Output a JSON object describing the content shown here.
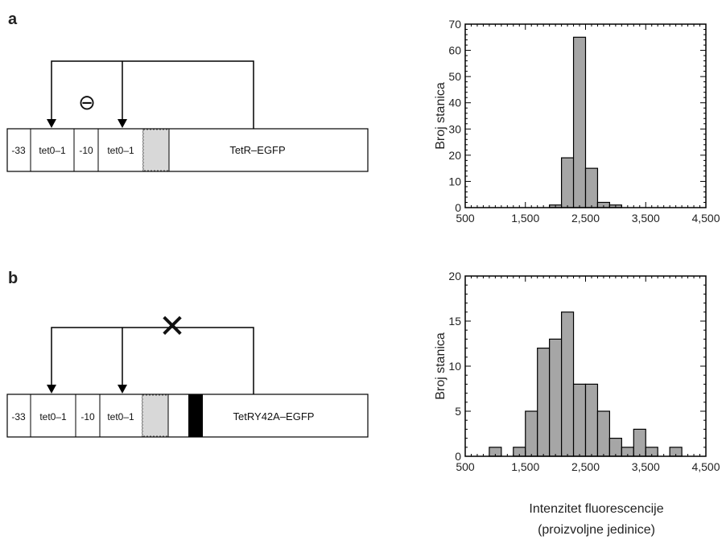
{
  "panels": [
    {
      "letter": "a",
      "segments": [
        "-33",
        "tet0–1",
        "-10",
        "tet0–1",
        "TetR–EGFP"
      ],
      "regulation_symbol": "⊖",
      "regulation_state": "repressed"
    },
    {
      "letter": "b",
      "segments": [
        "-33",
        "tet0–1",
        "-10",
        "tet0–1",
        "TetRY42A–EGFP"
      ],
      "regulation_symbol": "✕",
      "regulation_state": "not repressed"
    }
  ],
  "chart_data": [
    {
      "type": "bar",
      "ylabel": "Broj stanica",
      "xlabel": "",
      "xlim": [
        500,
        4500
      ],
      "ylim": [
        0,
        70
      ],
      "xticks": [
        500,
        1500,
        2500,
        3500,
        4500
      ],
      "xtick_labels": [
        "500",
        "1,500",
        "2,500",
        "3,500",
        "4,500"
      ],
      "yticks": [
        0,
        10,
        20,
        30,
        40,
        50,
        60,
        70
      ],
      "yticks_labels": [
        "0",
        "10",
        "20",
        "30",
        "40",
        "50",
        "60",
        "70"
      ],
      "bin_width": 200,
      "bins": [
        {
          "x0": 1900,
          "value": 1
        },
        {
          "x0": 2100,
          "value": 19
        },
        {
          "x0": 2300,
          "value": 65
        },
        {
          "x0": 2500,
          "value": 15
        },
        {
          "x0": 2700,
          "value": 2
        },
        {
          "x0": 2900,
          "value": 1
        }
      ]
    },
    {
      "type": "bar",
      "ylabel": "Broj stanica",
      "xlabel": "Intenzitet fluorescencije",
      "xlabel2": "(proizvoljne jedinice)",
      "xlim": [
        500,
        4500
      ],
      "ylim": [
        0,
        20
      ],
      "xticks": [
        500,
        1500,
        2500,
        3500,
        4500
      ],
      "xtick_labels": [
        "500",
        "1,500",
        "2,500",
        "3,500",
        "4,500"
      ],
      "yticks": [
        0,
        5,
        10,
        15,
        20
      ],
      "yticks_labels": [
        "0",
        "5",
        "10",
        "15",
        "20"
      ],
      "bin_width": 200,
      "bins": [
        {
          "x0": 900,
          "value": 1
        },
        {
          "x0": 1300,
          "value": 1
        },
        {
          "x0": 1500,
          "value": 5
        },
        {
          "x0": 1700,
          "value": 12
        },
        {
          "x0": 1900,
          "value": 13
        },
        {
          "x0": 2100,
          "value": 16
        },
        {
          "x0": 2300,
          "value": 8
        },
        {
          "x0": 2500,
          "value": 8
        },
        {
          "x0": 2700,
          "value": 5
        },
        {
          "x0": 2900,
          "value": 2
        },
        {
          "x0": 3100,
          "value": 1
        },
        {
          "x0": 3300,
          "value": 3
        },
        {
          "x0": 3500,
          "value": 1
        },
        {
          "x0": 3900,
          "value": 1
        }
      ]
    }
  ]
}
